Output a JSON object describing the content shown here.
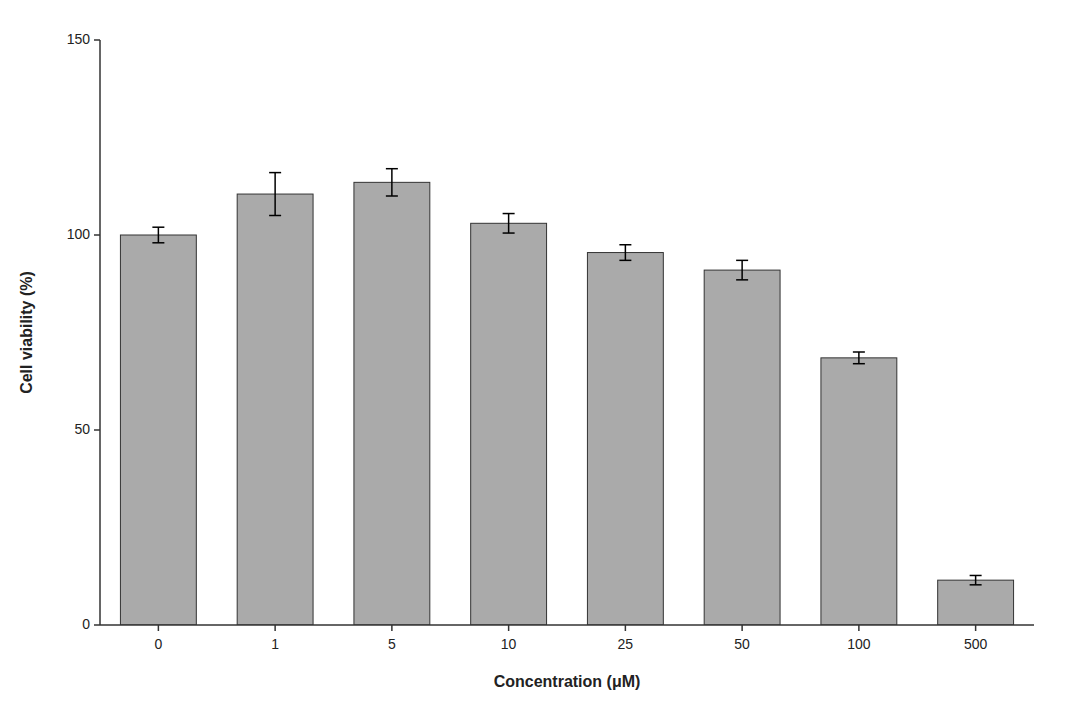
{
  "chart_data": {
    "type": "bar",
    "categories": [
      "0",
      "1",
      "5",
      "10",
      "25",
      "50",
      "100",
      "500"
    ],
    "values": [
      100.0,
      110.5,
      113.5,
      103.0,
      95.5,
      91.0,
      68.5,
      11.5
    ],
    "errors": [
      2.0,
      5.5,
      3.5,
      2.5,
      2.0,
      2.5,
      1.5,
      1.2
    ],
    "color": "#aaaaaa",
    "xlabel": "Concentration  (μM)",
    "ylabel": "Cell viability (%)",
    "ylim": [
      0,
      150
    ],
    "yticks": [
      0,
      50,
      100,
      150
    ],
    "grid": false
  }
}
